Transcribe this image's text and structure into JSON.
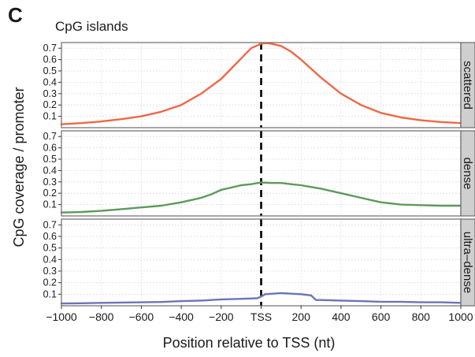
{
  "figure": {
    "panel_letter": "C"
  },
  "chart_data": {
    "type": "line",
    "title": "CpG islands",
    "xlabel": "Position relative to TSS (nt)",
    "ylabel": "CpG coverage / promoter",
    "xlim": [
      -1000,
      1000
    ],
    "ylim": [
      0,
      0.75
    ],
    "x_ticks": [
      {
        "value": -1000,
        "label": "−1000"
      },
      {
        "value": -800,
        "label": "−800"
      },
      {
        "value": -600,
        "label": "−600"
      },
      {
        "value": -400,
        "label": "−400"
      },
      {
        "value": -200,
        "label": "−200"
      },
      {
        "value": 0,
        "label": "TSS"
      },
      {
        "value": 200,
        "label": "200"
      },
      {
        "value": 400,
        "label": "400"
      },
      {
        "value": 600,
        "label": "600"
      },
      {
        "value": 800,
        "label": "800"
      },
      {
        "value": 1000,
        "label": "1000"
      }
    ],
    "y_ticks": [
      {
        "value": 0.1,
        "label": "0.1"
      },
      {
        "value": 0.2,
        "label": "0.2"
      },
      {
        "value": 0.3,
        "label": "0.3"
      },
      {
        "value": 0.4,
        "label": "0.4"
      },
      {
        "value": 0.5,
        "label": "0.5"
      },
      {
        "value": 0.6,
        "label": "0.6"
      },
      {
        "value": 0.7,
        "label": "0.7"
      }
    ],
    "grid": true,
    "reference_line": {
      "x": 0,
      "style": "dashed",
      "color": "#000000"
    },
    "facets": [
      {
        "name": "scattered",
        "color": "#ee6848",
        "x": [
          -1000,
          -900,
          -800,
          -700,
          -600,
          -500,
          -400,
          -300,
          -200,
          -150,
          -100,
          -50,
          -25,
          0,
          25,
          50,
          100,
          150,
          200,
          300,
          400,
          500,
          600,
          700,
          800,
          900,
          1000
        ],
        "y": [
          0.03,
          0.04,
          0.055,
          0.075,
          0.1,
          0.14,
          0.2,
          0.3,
          0.43,
          0.52,
          0.61,
          0.7,
          0.72,
          0.74,
          0.745,
          0.74,
          0.72,
          0.67,
          0.6,
          0.44,
          0.3,
          0.2,
          0.13,
          0.09,
          0.065,
          0.05,
          0.04
        ]
      },
      {
        "name": "dense",
        "color": "#5d9a5d",
        "x": [
          -1000,
          -900,
          -800,
          -700,
          -600,
          -500,
          -400,
          -300,
          -250,
          -200,
          -150,
          -100,
          -50,
          0,
          50,
          100,
          150,
          200,
          300,
          400,
          500,
          600,
          700,
          800,
          900,
          1000
        ],
        "y": [
          0.03,
          0.035,
          0.045,
          0.06,
          0.075,
          0.09,
          0.12,
          0.16,
          0.19,
          0.23,
          0.25,
          0.27,
          0.28,
          0.295,
          0.29,
          0.29,
          0.28,
          0.27,
          0.24,
          0.2,
          0.16,
          0.12,
          0.1,
          0.095,
          0.09,
          0.09
        ]
      },
      {
        "name": "ultra–dense",
        "color": "#6b75b5",
        "x": [
          -1000,
          -900,
          -800,
          -700,
          -600,
          -500,
          -400,
          -300,
          -200,
          -100,
          -20,
          0,
          20,
          100,
          200,
          250,
          275,
          300,
          400,
          500,
          600,
          700,
          800,
          900,
          1000
        ],
        "y": [
          0.02,
          0.022,
          0.025,
          0.028,
          0.03,
          0.033,
          0.04,
          0.045,
          0.055,
          0.06,
          0.065,
          0.08,
          0.1,
          0.11,
          0.1,
          0.09,
          0.05,
          0.05,
          0.045,
          0.04,
          0.035,
          0.035,
          0.03,
          0.03,
          0.025
        ]
      }
    ]
  }
}
